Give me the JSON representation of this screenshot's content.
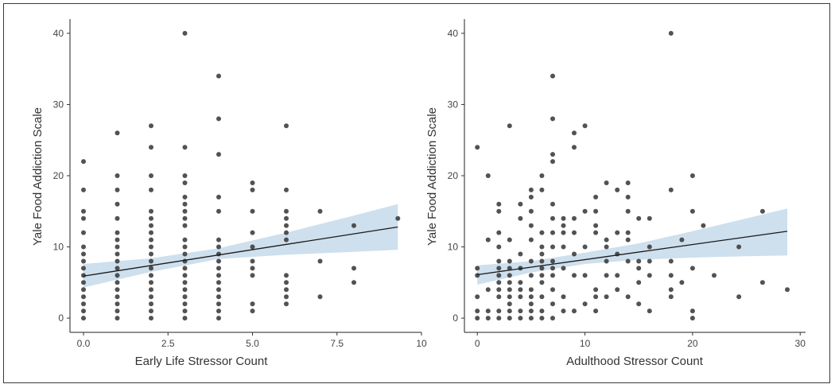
{
  "chart_data": [
    {
      "type": "scatter",
      "title": "",
      "xlabel": "Early Life Stressor Count",
      "ylabel": "Yale Food Addiction Scale",
      "xlim": [
        -0.4,
        10
      ],
      "ylim": [
        -2,
        42
      ],
      "xticks": [
        0,
        2.5,
        5,
        7.5,
        10
      ],
      "xtick_labels": [
        "0.0",
        "2.5",
        "5.0",
        "7.5",
        "10"
      ],
      "yticks": [
        0,
        10,
        20,
        30,
        40
      ],
      "ytick_labels": [
        "0",
        "10",
        "20",
        "30",
        "40"
      ],
      "grid": false,
      "point_color": "#3f3f3f",
      "band_color": "#c9dceb",
      "line_color": "#1a1a1a",
      "points": [
        [
          0,
          22
        ],
        [
          0,
          18
        ],
        [
          0,
          15
        ],
        [
          0,
          14
        ],
        [
          0,
          12
        ],
        [
          0,
          10
        ],
        [
          0,
          9
        ],
        [
          0,
          8
        ],
        [
          0,
          7
        ],
        [
          0,
          6
        ],
        [
          0,
          5
        ],
        [
          0,
          4
        ],
        [
          0,
          3
        ],
        [
          0,
          2
        ],
        [
          0,
          1
        ],
        [
          0,
          0
        ],
        [
          1,
          26
        ],
        [
          1,
          20
        ],
        [
          1,
          18
        ],
        [
          1,
          16
        ],
        [
          1,
          14
        ],
        [
          1,
          12
        ],
        [
          1,
          11
        ],
        [
          1,
          10
        ],
        [
          1,
          9
        ],
        [
          1,
          8
        ],
        [
          1,
          7
        ],
        [
          1,
          6
        ],
        [
          1,
          5
        ],
        [
          1,
          4
        ],
        [
          1,
          3
        ],
        [
          1,
          2
        ],
        [
          1,
          1
        ],
        [
          1,
          0
        ],
        [
          2,
          27
        ],
        [
          2,
          24
        ],
        [
          2,
          20
        ],
        [
          2,
          18
        ],
        [
          2,
          15
        ],
        [
          2,
          14
        ],
        [
          2,
          13
        ],
        [
          2,
          12
        ],
        [
          2,
          11
        ],
        [
          2,
          10
        ],
        [
          2,
          9
        ],
        [
          2,
          8
        ],
        [
          2,
          7
        ],
        [
          2,
          6
        ],
        [
          2,
          5
        ],
        [
          2,
          4
        ],
        [
          2,
          3
        ],
        [
          2,
          2
        ],
        [
          2,
          1
        ],
        [
          2,
          0
        ],
        [
          3,
          40
        ],
        [
          3,
          24
        ],
        [
          3,
          20
        ],
        [
          3,
          19
        ],
        [
          3,
          17
        ],
        [
          3,
          16
        ],
        [
          3,
          15
        ],
        [
          3,
          14
        ],
        [
          3,
          13
        ],
        [
          3,
          11
        ],
        [
          3,
          10
        ],
        [
          3,
          9
        ],
        [
          3,
          8
        ],
        [
          3,
          7
        ],
        [
          3,
          6
        ],
        [
          3,
          5
        ],
        [
          3,
          4
        ],
        [
          3,
          3
        ],
        [
          3,
          2
        ],
        [
          3,
          1
        ],
        [
          3,
          0
        ],
        [
          4,
          34
        ],
        [
          4,
          28
        ],
        [
          4,
          23
        ],
        [
          4,
          17
        ],
        [
          4,
          15
        ],
        [
          4,
          11
        ],
        [
          4,
          10
        ],
        [
          4,
          9
        ],
        [
          4,
          8
        ],
        [
          4,
          7
        ],
        [
          4,
          6
        ],
        [
          4,
          5
        ],
        [
          4,
          4
        ],
        [
          4,
          3
        ],
        [
          4,
          2
        ],
        [
          4,
          1
        ],
        [
          4,
          0
        ],
        [
          5,
          19
        ],
        [
          5,
          18
        ],
        [
          5,
          15
        ],
        [
          5,
          12
        ],
        [
          5,
          10
        ],
        [
          5,
          8
        ],
        [
          5,
          7
        ],
        [
          5,
          6
        ],
        [
          5,
          2
        ],
        [
          5,
          1
        ],
        [
          6,
          27
        ],
        [
          6,
          18
        ],
        [
          6,
          15
        ],
        [
          6,
          14
        ],
        [
          6,
          13
        ],
        [
          6,
          12
        ],
        [
          6,
          11
        ],
        [
          6,
          6
        ],
        [
          6,
          5
        ],
        [
          6,
          4
        ],
        [
          6,
          3
        ],
        [
          6,
          2
        ],
        [
          7,
          15
        ],
        [
          7,
          8
        ],
        [
          7,
          3
        ],
        [
          8,
          13
        ],
        [
          8,
          7
        ],
        [
          8,
          5
        ],
        [
          9.3,
          14
        ]
      ],
      "fit": {
        "x": [
          0,
          9.3
        ],
        "y": [
          5.9,
          12.8
        ]
      },
      "band": {
        "x": [
          0,
          2,
          4,
          6,
          8,
          9.3
        ],
        "upper": [
          7.6,
          8.4,
          9.8,
          12.0,
          14.4,
          16.0
        ],
        "lower": [
          4.3,
          6.5,
          8.3,
          8.9,
          9.3,
          9.6
        ]
      }
    },
    {
      "type": "scatter",
      "title": "",
      "xlabel": "Adulthood Stressor Count",
      "ylabel": "Yale Food Addiction Scale",
      "xlim": [
        -1.2,
        30.5
      ],
      "ylim": [
        -2,
        42
      ],
      "xticks": [
        0,
        10,
        20,
        30
      ],
      "xtick_labels": [
        "0",
        "10",
        "20",
        "30"
      ],
      "yticks": [
        0,
        10,
        20,
        30,
        40
      ],
      "ytick_labels": [
        "0",
        "10",
        "20",
        "30",
        "40"
      ],
      "grid": false,
      "point_color": "#3f3f3f",
      "band_color": "#c9dceb",
      "line_color": "#1a1a1a",
      "points": [
        [
          0,
          24
        ],
        [
          0,
          7
        ],
        [
          0,
          6
        ],
        [
          0,
          3
        ],
        [
          0,
          1
        ],
        [
          0,
          0
        ],
        [
          1,
          20
        ],
        [
          1,
          11
        ],
        [
          1,
          4
        ],
        [
          1,
          1
        ],
        [
          1,
          0
        ],
        [
          2,
          16
        ],
        [
          2,
          15
        ],
        [
          2,
          12
        ],
        [
          2,
          10
        ],
        [
          2,
          8
        ],
        [
          2,
          7
        ],
        [
          2,
          6
        ],
        [
          2,
          5
        ],
        [
          2,
          4
        ],
        [
          2,
          3
        ],
        [
          2,
          1
        ],
        [
          2,
          0
        ],
        [
          3,
          27
        ],
        [
          3,
          11
        ],
        [
          3,
          8
        ],
        [
          3,
          7
        ],
        [
          3,
          6
        ],
        [
          3,
          5
        ],
        [
          3,
          4
        ],
        [
          3,
          3
        ],
        [
          3,
          2
        ],
        [
          3,
          1
        ],
        [
          3,
          0
        ],
        [
          4,
          16
        ],
        [
          4,
          14
        ],
        [
          4,
          9
        ],
        [
          4,
          7
        ],
        [
          4,
          5
        ],
        [
          4,
          4
        ],
        [
          4,
          3
        ],
        [
          4,
          1
        ],
        [
          4,
          0
        ],
        [
          5,
          18
        ],
        [
          5,
          17
        ],
        [
          5,
          15
        ],
        [
          5,
          13
        ],
        [
          5,
          11
        ],
        [
          5,
          8
        ],
        [
          5,
          6
        ],
        [
          5,
          4
        ],
        [
          5,
          3
        ],
        [
          5,
          2
        ],
        [
          5,
          1
        ],
        [
          5,
          0
        ],
        [
          6,
          20
        ],
        [
          6,
          18
        ],
        [
          6,
          12
        ],
        [
          6,
          10
        ],
        [
          6,
          9
        ],
        [
          6,
          8
        ],
        [
          6,
          7
        ],
        [
          6,
          6
        ],
        [
          6,
          5
        ],
        [
          6,
          3
        ],
        [
          6,
          1
        ],
        [
          6,
          0
        ],
        [
          7,
          34
        ],
        [
          7,
          28
        ],
        [
          7,
          23
        ],
        [
          7,
          22
        ],
        [
          7,
          16
        ],
        [
          7,
          14
        ],
        [
          7,
          12
        ],
        [
          7,
          10
        ],
        [
          7,
          8
        ],
        [
          7,
          7
        ],
        [
          7,
          6
        ],
        [
          7,
          4
        ],
        [
          7,
          2
        ],
        [
          7,
          0
        ],
        [
          8,
          14
        ],
        [
          8,
          13
        ],
        [
          8,
          12
        ],
        [
          8,
          10
        ],
        [
          8,
          7
        ],
        [
          8,
          3
        ],
        [
          8,
          1
        ],
        [
          9,
          26
        ],
        [
          9,
          24
        ],
        [
          9,
          14
        ],
        [
          9,
          12
        ],
        [
          9,
          9
        ],
        [
          9,
          6
        ],
        [
          9,
          1
        ],
        [
          10,
          27
        ],
        [
          10,
          15
        ],
        [
          10,
          10
        ],
        [
          10,
          6
        ],
        [
          10,
          2
        ],
        [
          11,
          17
        ],
        [
          11,
          15
        ],
        [
          11,
          13
        ],
        [
          11,
          12
        ],
        [
          11,
          4
        ],
        [
          11,
          3
        ],
        [
          11,
          1
        ],
        [
          12,
          19
        ],
        [
          12,
          11
        ],
        [
          12,
          10
        ],
        [
          12,
          8
        ],
        [
          12,
          6
        ],
        [
          12,
          3
        ],
        [
          13,
          18
        ],
        [
          13,
          12
        ],
        [
          13,
          9
        ],
        [
          13,
          6
        ],
        [
          13,
          4
        ],
        [
          14,
          19
        ],
        [
          14,
          17
        ],
        [
          14,
          15
        ],
        [
          14,
          12
        ],
        [
          14,
          11
        ],
        [
          14,
          8
        ],
        [
          14,
          3
        ],
        [
          15,
          14
        ],
        [
          15,
          8
        ],
        [
          15,
          7
        ],
        [
          15,
          5
        ],
        [
          15,
          2
        ],
        [
          16,
          14
        ],
        [
          16,
          10
        ],
        [
          16,
          8
        ],
        [
          16,
          6
        ],
        [
          16,
          1
        ],
        [
          18,
          40
        ],
        [
          18,
          18
        ],
        [
          18,
          8
        ],
        [
          18,
          6
        ],
        [
          18,
          4
        ],
        [
          18,
          3
        ],
        [
          19,
          11
        ],
        [
          19,
          5
        ],
        [
          20,
          20
        ],
        [
          20,
          15
        ],
        [
          20,
          7
        ],
        [
          20,
          1
        ],
        [
          20,
          0
        ],
        [
          21,
          13
        ],
        [
          22,
          6
        ],
        [
          24.3,
          10
        ],
        [
          24.3,
          3
        ],
        [
          26.5,
          15
        ],
        [
          26.5,
          5
        ],
        [
          28.8,
          4
        ]
      ],
      "fit": {
        "x": [
          0,
          28.8
        ],
        "y": [
          6.1,
          12.2
        ]
      },
      "band": {
        "x": [
          0,
          5,
          10,
          15,
          20,
          25,
          28.8
        ],
        "upper": [
          7.4,
          8.0,
          9.2,
          10.5,
          12.2,
          14.0,
          15.4
        ],
        "lower": [
          4.7,
          6.4,
          7.6,
          8.2,
          8.5,
          8.7,
          8.8
        ]
      }
    }
  ]
}
